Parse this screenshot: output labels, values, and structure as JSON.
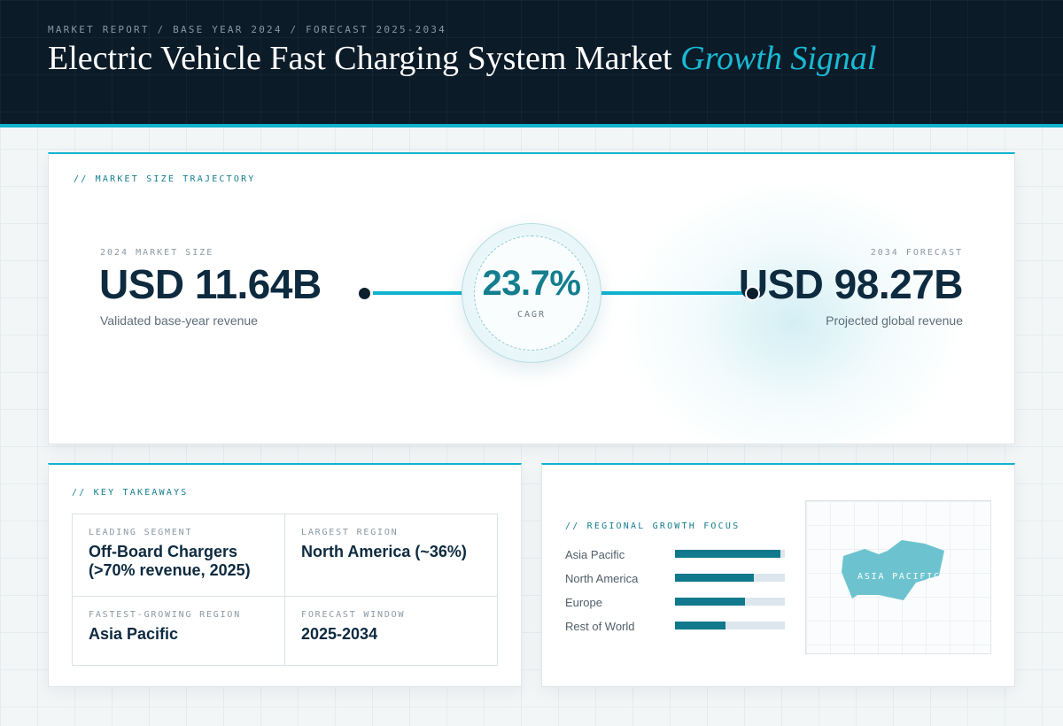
{
  "header": {
    "breadcrumb": "MARKET REPORT / BASE YEAR 2024 / FORECAST 2025-2034",
    "title_main": "Electric Vehicle Fast Charging System Market",
    "title_accent": "Growth Signal"
  },
  "trajectory": {
    "label": "// MARKET SIZE TRAJECTORY",
    "start": {
      "label": "2024 MARKET SIZE",
      "value": "USD 11.64B",
      "caption": "Validated base-year revenue"
    },
    "cagr": {
      "value": "23.7%",
      "label": "CAGR"
    },
    "end": {
      "label": "2034 FORECAST",
      "value": "USD 98.27B",
      "caption": "Projected global revenue"
    }
  },
  "takeaways": {
    "label": "// KEY TAKEAWAYS",
    "items": [
      {
        "label": "LEADING SEGMENT",
        "value": "Off-Board Chargers (>70% revenue, 2025)"
      },
      {
        "label": "LARGEST REGION",
        "value": "North America (~36%)"
      },
      {
        "label": "FASTEST-GROWING REGION",
        "value": "Asia Pacific"
      },
      {
        "label": "FORECAST WINDOW",
        "value": "2025-2034"
      }
    ]
  },
  "regional": {
    "label": "// REGIONAL GROWTH FOCUS",
    "map_label": "ASIA PACIFIC"
  },
  "colors": {
    "header_bg": "#0b1b28",
    "accent": "#0fb3cf",
    "bar_fill": "#11798c",
    "bar_track": "#dde6ec",
    "map_shape": "#6cc3cf"
  },
  "chart_data": {
    "type": "bar",
    "orientation": "horizontal",
    "categories": [
      "Asia Pacific",
      "North America",
      "Europe",
      "Rest of World"
    ],
    "values": [
      0.96,
      0.72,
      0.64,
      0.46
    ]
  }
}
